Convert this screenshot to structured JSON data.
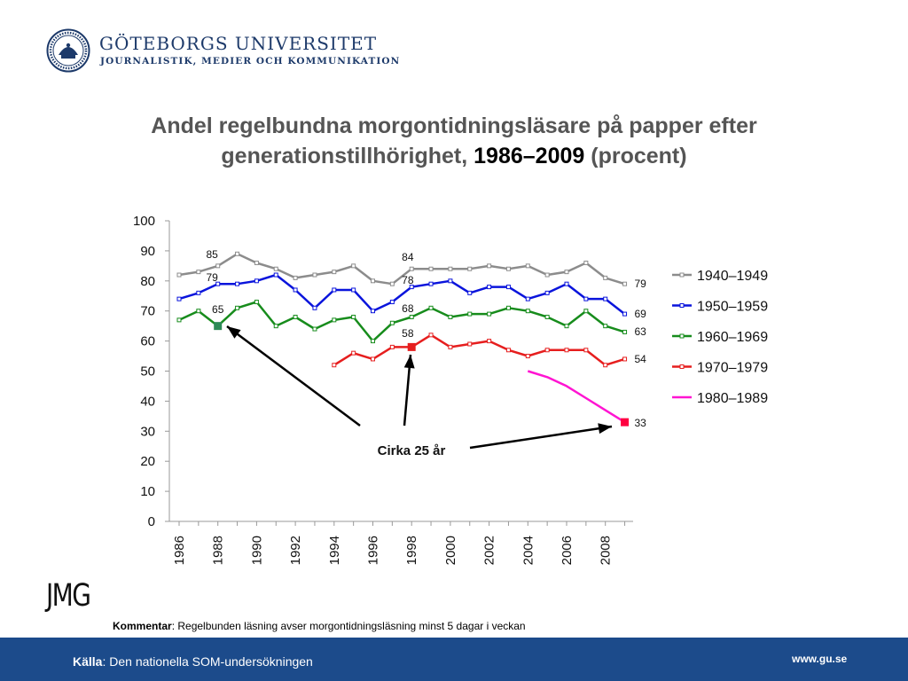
{
  "header": {
    "university": "GÖTEBORGS UNIVERSITET",
    "department": "JOURNALISTIK, MEDIER OCH KOMMUNIKATION"
  },
  "title": {
    "line1": "Andel regelbundna morgontidningsläsare på papper efter",
    "line2_prefix": "generationstillhörighet,",
    "line2_years": "1986–2009",
    "line2_suffix": "(procent)"
  },
  "chart_data": {
    "type": "line",
    "x": [
      1986,
      1987,
      1988,
      1989,
      1990,
      1991,
      1992,
      1993,
      1994,
      1995,
      1996,
      1997,
      1998,
      1999,
      2000,
      2001,
      2002,
      2003,
      2004,
      2005,
      2006,
      2007,
      2008,
      2009
    ],
    "x_tick_labels": [
      "1986",
      "1988",
      "1990",
      "1992",
      "1994",
      "1996",
      "1998",
      "2000",
      "2002",
      "2004",
      "2006",
      "2008"
    ],
    "ylim": [
      0,
      100
    ],
    "y_ticks": [
      "0",
      "10",
      "20",
      "30",
      "40",
      "50",
      "60",
      "70",
      "80",
      "90",
      "100"
    ],
    "grid": false,
    "legend_position": "right",
    "series": [
      {
        "name": "1940–1949",
        "color": "#8c8c8c",
        "values": [
          82,
          83,
          85,
          89,
          86,
          84,
          81,
          82,
          83,
          85,
          80,
          79,
          84,
          84,
          84,
          84,
          85,
          84,
          85,
          82,
          83,
          86,
          81,
          79
        ]
      },
      {
        "name": "1950–1959",
        "color": "#0a14dc",
        "values": [
          74,
          76,
          79,
          79,
          80,
          82,
          77,
          71,
          77,
          77,
          70,
          73,
          78,
          79,
          80,
          76,
          78,
          78,
          74,
          76,
          79,
          74,
          74,
          69
        ]
      },
      {
        "name": "1960–1969",
        "color": "#178c1c",
        "values": [
          67,
          70,
          65,
          71,
          73,
          65,
          68,
          64,
          67,
          68,
          60,
          66,
          68,
          71,
          68,
          69,
          69,
          71,
          70,
          68,
          65,
          70,
          65,
          63
        ]
      },
      {
        "name": "1970–1979",
        "color": "#e61e1e",
        "values": [
          null,
          null,
          null,
          null,
          null,
          null,
          null,
          null,
          52,
          56,
          54,
          58,
          58,
          62,
          58,
          59,
          60,
          57,
          55,
          57,
          57,
          57,
          52,
          54
        ]
      },
      {
        "name": "1980–1989",
        "color": "#ff14d2",
        "values": [
          null,
          null,
          null,
          null,
          null,
          null,
          null,
          null,
          null,
          null,
          null,
          null,
          null,
          null,
          null,
          null,
          null,
          null,
          50,
          48,
          45,
          41,
          37,
          33
        ]
      }
    ],
    "annotations": [
      "85",
      "79",
      "65",
      "84",
      "78",
      "68",
      "58",
      "79",
      "69",
      "63",
      "54",
      "33"
    ],
    "callout": "Cirka 25 år"
  },
  "comment": {
    "bold": "Kommentar",
    "text": ": Regelbunden läsning avser morgontidningsläsning minst 5 dagar i veckan"
  },
  "footer": {
    "source_bold": "Källa",
    "source_text": ": Den nationella SOM-undersökningen",
    "url": "www.gu.se"
  }
}
